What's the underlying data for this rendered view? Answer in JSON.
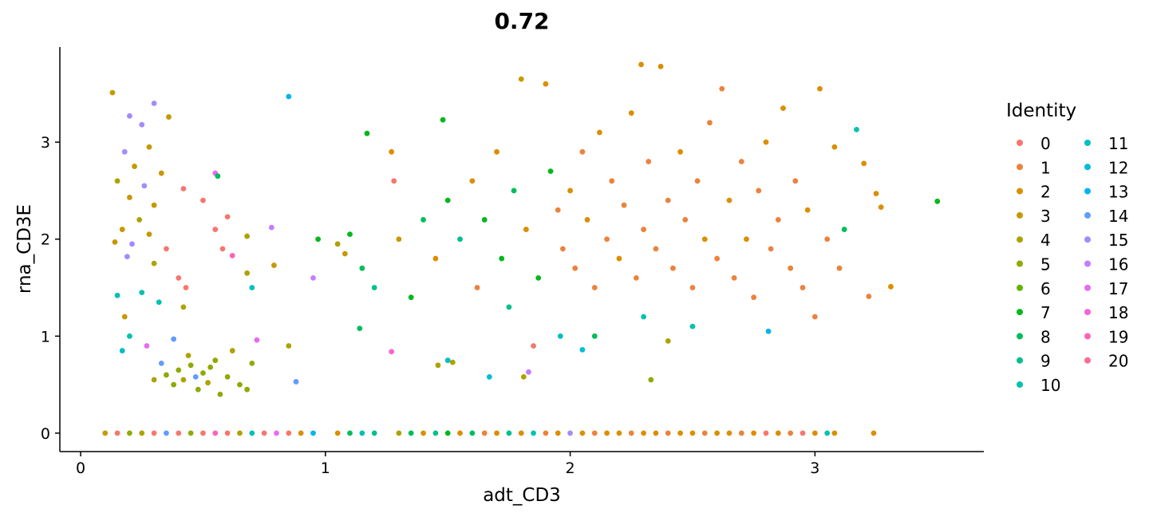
{
  "chart_data": {
    "type": "scatter",
    "title": "0.72",
    "xlabel": "adt_CD3",
    "ylabel": "rna_CD3E",
    "xlim": [
      -0.085,
      3.69
    ],
    "ylim": [
      -0.19,
      3.98
    ],
    "xticks": [
      "0",
      "1",
      "2",
      "3"
    ],
    "yticks": [
      "0",
      "1",
      "2",
      "3"
    ],
    "grid": false,
    "legend": {
      "title": "Identity",
      "placement": "right",
      "entries": [
        "0",
        "1",
        "2",
        "3",
        "4",
        "5",
        "6",
        "7",
        "8",
        "9",
        "10",
        "11",
        "12",
        "13",
        "14",
        "15",
        "16",
        "17",
        "18",
        "19",
        "20"
      ],
      "colors": [
        "#F8766D",
        "#EC823C",
        "#DB8E00",
        "#C79800",
        "#AEA200",
        "#8FAA00",
        "#64B200",
        "#00B81B",
        "#00BD5C",
        "#00C08D",
        "#00C1B2",
        "#00BFC4",
        "#00BBDB",
        "#00B4EF",
        "#619CFF",
        "#A58AFF",
        "#C77CFF",
        "#E76BF3",
        "#FA62DB",
        "#FF62BC",
        "#FF6C91"
      ]
    },
    "points": [
      [
        0.13,
        3.51,
        3
      ],
      [
        0.3,
        3.4,
        15
      ],
      [
        0.2,
        3.27,
        15
      ],
      [
        0.25,
        3.18,
        15
      ],
      [
        0.36,
        3.26,
        3
      ],
      [
        0.28,
        2.95,
        3
      ],
      [
        0.18,
        2.9,
        15
      ],
      [
        0.22,
        2.75,
        3
      ],
      [
        0.33,
        2.68,
        3
      ],
      [
        0.15,
        2.6,
        4
      ],
      [
        0.26,
        2.55,
        15
      ],
      [
        0.2,
        2.43,
        3
      ],
      [
        0.3,
        2.35,
        3
      ],
      [
        0.24,
        2.2,
        4
      ],
      [
        0.17,
        2.1,
        3
      ],
      [
        0.28,
        2.05,
        3
      ],
      [
        0.21,
        1.95,
        15
      ],
      [
        0.35,
        1.9,
        0
      ],
      [
        0.14,
        1.97,
        3
      ],
      [
        0.19,
        1.82,
        15
      ],
      [
        0.3,
        1.75,
        4
      ],
      [
        0.4,
        1.6,
        0
      ],
      [
        0.43,
        1.5,
        0
      ],
      [
        0.25,
        1.45,
        10
      ],
      [
        0.15,
        1.42,
        10
      ],
      [
        0.32,
        1.35,
        10
      ],
      [
        0.42,
        1.3,
        4
      ],
      [
        0.18,
        1.2,
        3
      ],
      [
        0.2,
        1.0,
        10
      ],
      [
        0.17,
        0.85,
        11
      ],
      [
        0.27,
        0.9,
        17
      ],
      [
        0.38,
        0.97,
        14
      ],
      [
        0.42,
        2.52,
        0
      ],
      [
        0.5,
        2.4,
        0
      ],
      [
        0.55,
        2.1,
        0
      ],
      [
        0.6,
        2.23,
        0
      ],
      [
        0.58,
        1.9,
        0
      ],
      [
        0.62,
        1.83,
        19
      ],
      [
        0.55,
        2.68,
        17
      ],
      [
        0.56,
        2.65,
        8
      ],
      [
        0.68,
        1.65,
        4
      ],
      [
        0.68,
        2.03,
        4
      ],
      [
        0.7,
        1.5,
        11
      ],
      [
        0.79,
        1.73,
        3
      ],
      [
        0.78,
        2.12,
        16
      ],
      [
        0.35,
        0.6,
        5
      ],
      [
        0.38,
        0.5,
        5
      ],
      [
        0.42,
        0.55,
        4
      ],
      [
        0.45,
        0.7,
        5
      ],
      [
        0.48,
        0.45,
        5
      ],
      [
        0.5,
        0.62,
        5
      ],
      [
        0.52,
        0.52,
        4
      ],
      [
        0.55,
        0.75,
        5
      ],
      [
        0.57,
        0.4,
        5
      ],
      [
        0.6,
        0.58,
        5
      ],
      [
        0.44,
        0.8,
        4
      ],
      [
        0.4,
        0.65,
        5
      ],
      [
        0.47,
        0.58,
        14
      ],
      [
        0.53,
        0.68,
        5
      ],
      [
        0.62,
        0.85,
        4
      ],
      [
        0.65,
        0.5,
        5
      ],
      [
        0.68,
        0.45,
        5
      ],
      [
        0.3,
        0.55,
        4
      ],
      [
        0.33,
        0.72,
        14
      ],
      [
        0.7,
        0.72,
        5
      ],
      [
        0.72,
        0.96,
        17
      ],
      [
        0.85,
        0.9,
        4
      ],
      [
        0.85,
        3.47,
        13
      ],
      [
        0.88,
        0.53,
        14
      ],
      [
        0.95,
        1.6,
        16
      ],
      [
        0.97,
        2.0,
        7
      ],
      [
        1.05,
        1.95,
        4
      ],
      [
        1.08,
        1.85,
        3
      ],
      [
        1.1,
        2.05,
        7
      ],
      [
        1.15,
        1.7,
        8
      ],
      [
        1.2,
        1.5,
        9
      ],
      [
        1.17,
        3.09,
        7
      ],
      [
        1.27,
        2.9,
        2
      ],
      [
        1.28,
        2.6,
        0
      ],
      [
        1.3,
        2.0,
        3
      ],
      [
        1.35,
        1.4,
        7
      ],
      [
        1.4,
        2.2,
        8
      ],
      [
        1.45,
        1.8,
        2
      ],
      [
        1.48,
        3.23,
        7
      ],
      [
        1.46,
        0.7,
        4
      ],
      [
        1.5,
        2.4,
        7
      ],
      [
        1.55,
        2.0,
        9
      ],
      [
        1.6,
        2.6,
        2
      ],
      [
        1.62,
        1.5,
        1
      ],
      [
        1.65,
        2.2,
        7
      ],
      [
        1.7,
        2.9,
        2
      ],
      [
        1.72,
        1.8,
        7
      ],
      [
        1.75,
        1.3,
        9
      ],
      [
        1.77,
        2.5,
        8
      ],
      [
        1.8,
        3.65,
        3
      ],
      [
        1.82,
        2.1,
        2
      ],
      [
        1.85,
        0.9,
        0
      ],
      [
        1.87,
        1.6,
        7
      ],
      [
        1.9,
        3.6,
        2
      ],
      [
        1.92,
        2.7,
        7
      ],
      [
        1.95,
        2.3,
        1
      ],
      [
        1.97,
        1.9,
        1
      ],
      [
        2.0,
        2.5,
        2
      ],
      [
        2.02,
        1.7,
        1
      ],
      [
        2.05,
        2.9,
        1
      ],
      [
        2.07,
        2.2,
        2
      ],
      [
        2.1,
        1.5,
        1
      ],
      [
        2.12,
        3.1,
        2
      ],
      [
        2.15,
        2.0,
        1
      ],
      [
        2.17,
        2.6,
        1
      ],
      [
        2.2,
        1.8,
        2
      ],
      [
        2.22,
        2.35,
        1
      ],
      [
        2.25,
        3.3,
        2
      ],
      [
        2.27,
        1.6,
        1
      ],
      [
        2.3,
        2.1,
        1
      ],
      [
        2.29,
        3.8,
        2
      ],
      [
        2.32,
        2.8,
        1
      ],
      [
        2.35,
        1.9,
        1
      ],
      [
        2.37,
        3.78,
        2
      ],
      [
        2.4,
        2.4,
        1
      ],
      [
        2.42,
        1.7,
        1
      ],
      [
        2.45,
        2.9,
        2
      ],
      [
        2.47,
        2.2,
        1
      ],
      [
        2.5,
        1.5,
        1
      ],
      [
        2.52,
        2.6,
        1
      ],
      [
        2.55,
        2.0,
        2
      ],
      [
        2.57,
        3.2,
        1
      ],
      [
        2.6,
        1.8,
        1
      ],
      [
        2.62,
        3.55,
        1
      ],
      [
        2.65,
        2.4,
        2
      ],
      [
        2.67,
        1.6,
        1
      ],
      [
        2.7,
        2.8,
        1
      ],
      [
        2.72,
        2.0,
        2
      ],
      [
        2.75,
        1.4,
        1
      ],
      [
        2.77,
        2.5,
        1
      ],
      [
        2.8,
        3.0,
        2
      ],
      [
        2.82,
        1.9,
        1
      ],
      [
        2.85,
        2.2,
        1
      ],
      [
        2.87,
        3.35,
        2
      ],
      [
        2.9,
        1.7,
        1
      ],
      [
        2.92,
        2.6,
        1
      ],
      [
        2.95,
        1.5,
        1
      ],
      [
        2.97,
        2.3,
        2
      ],
      [
        3.0,
        1.2,
        1
      ],
      [
        3.02,
        3.55,
        2
      ],
      [
        3.05,
        2.0,
        1
      ],
      [
        3.08,
        2.95,
        2
      ],
      [
        3.1,
        1.7,
        1
      ],
      [
        3.12,
        2.1,
        8
      ],
      [
        3.17,
        3.13,
        10
      ],
      [
        3.2,
        2.78,
        2
      ],
      [
        3.25,
        2.47,
        2
      ],
      [
        3.22,
        1.41,
        1
      ],
      [
        3.27,
        2.33,
        2
      ],
      [
        3.31,
        1.51,
        2
      ],
      [
        3.5,
        2.39,
        7
      ],
      [
        2.1,
        1.0,
        8
      ],
      [
        2.3,
        1.2,
        10
      ],
      [
        2.4,
        0.95,
        4
      ],
      [
        2.5,
        1.1,
        10
      ],
      [
        2.33,
        0.55,
        5
      ],
      [
        1.96,
        1.0,
        11
      ],
      [
        2.05,
        0.86,
        12
      ],
      [
        1.81,
        0.58,
        4
      ],
      [
        1.83,
        0.63,
        16
      ],
      [
        1.67,
        0.58,
        12
      ],
      [
        2.81,
        1.05,
        13
      ],
      [
        1.5,
        0.75,
        11
      ],
      [
        1.52,
        0.73,
        4
      ],
      [
        1.27,
        0.84,
        18
      ],
      [
        1.14,
        1.08,
        8
      ],
      [
        0.1,
        0,
        3
      ],
      [
        0.15,
        0,
        0
      ],
      [
        0.2,
        0,
        5
      ],
      [
        0.25,
        0,
        4
      ],
      [
        0.3,
        0,
        0
      ],
      [
        0.35,
        0,
        14
      ],
      [
        0.4,
        0,
        0
      ],
      [
        0.45,
        0,
        5
      ],
      [
        0.5,
        0,
        0
      ],
      [
        0.55,
        0,
        19
      ],
      [
        0.6,
        0,
        0
      ],
      [
        0.65,
        0,
        4
      ],
      [
        0.7,
        0,
        10
      ],
      [
        0.75,
        0,
        0
      ],
      [
        0.8,
        0,
        17
      ],
      [
        0.85,
        0,
        0
      ],
      [
        0.9,
        0,
        2
      ],
      [
        0.95,
        0,
        13
      ],
      [
        1.05,
        0,
        2
      ],
      [
        1.1,
        0,
        8
      ],
      [
        1.15,
        0,
        10
      ],
      [
        1.2,
        0,
        9
      ],
      [
        1.3,
        0,
        4
      ],
      [
        1.35,
        0,
        8
      ],
      [
        1.4,
        0,
        2
      ],
      [
        1.45,
        0,
        9
      ],
      [
        1.5,
        0,
        7
      ],
      [
        1.55,
        0,
        2
      ],
      [
        1.6,
        0,
        8
      ],
      [
        1.65,
        0,
        1
      ],
      [
        1.7,
        0,
        2
      ],
      [
        1.75,
        0,
        9
      ],
      [
        1.8,
        0,
        2
      ],
      [
        1.85,
        0,
        10
      ],
      [
        1.9,
        0,
        1
      ],
      [
        1.95,
        0,
        2
      ],
      [
        2.0,
        0,
        15
      ],
      [
        2.05,
        0,
        2
      ],
      [
        2.1,
        0,
        1
      ],
      [
        2.15,
        0,
        2
      ],
      [
        2.2,
        0,
        2
      ],
      [
        2.25,
        0,
        1
      ],
      [
        2.3,
        0,
        2
      ],
      [
        2.35,
        0,
        2
      ],
      [
        2.4,
        0,
        1
      ],
      [
        2.45,
        0,
        2
      ],
      [
        2.5,
        0,
        2
      ],
      [
        2.55,
        0,
        1
      ],
      [
        2.6,
        0,
        2
      ],
      [
        2.65,
        0,
        2
      ],
      [
        2.7,
        0,
        1
      ],
      [
        2.75,
        0,
        2
      ],
      [
        2.8,
        0,
        0
      ],
      [
        2.85,
        0,
        2
      ],
      [
        2.9,
        0,
        1
      ],
      [
        2.95,
        0,
        0
      ],
      [
        3.0,
        0,
        2
      ],
      [
        3.05,
        0,
        10
      ],
      [
        3.08,
        0,
        2
      ],
      [
        3.24,
        0,
        2
      ]
    ]
  }
}
